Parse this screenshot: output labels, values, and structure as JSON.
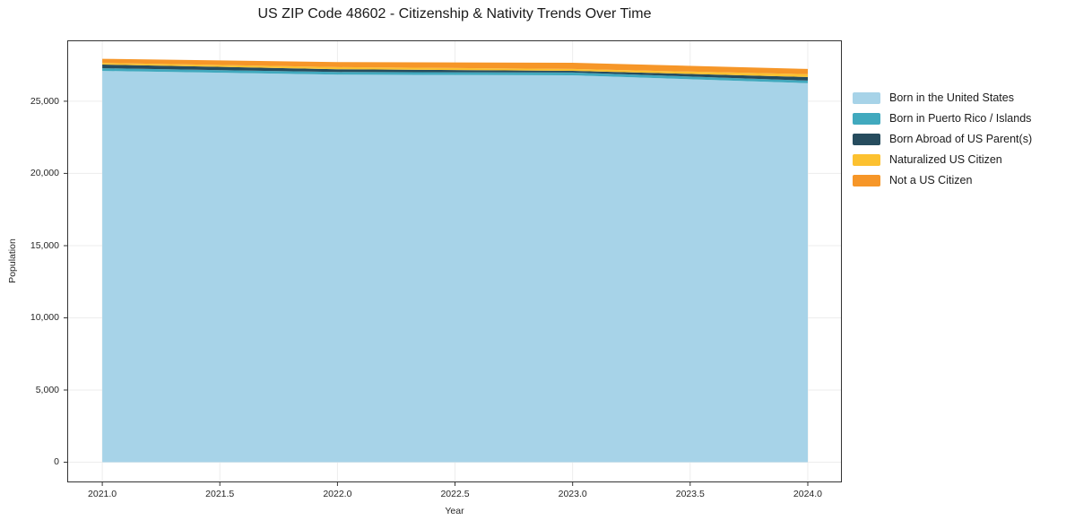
{
  "chart_data": {
    "type": "area",
    "stacked": true,
    "title": "US ZIP Code 48602 - Citizenship & Nativity Trends Over Time",
    "xlabel": "Year",
    "ylabel": "Population",
    "x": [
      2021,
      2022,
      2023,
      2024
    ],
    "series": [
      {
        "name": "Born in the United States",
        "color": "#a7d3e8",
        "values": [
          27100,
          26850,
          26800,
          26250
        ]
      },
      {
        "name": "Born in Puerto Rico / Islands",
        "color": "#41a9be",
        "values": [
          190,
          180,
          190,
          180
        ]
      },
      {
        "name": "Born Abroad of US Parent(s)",
        "color": "#264c5e",
        "values": [
          250,
          190,
          120,
          250
        ]
      },
      {
        "name": "Naturalized US Citizen",
        "color": "#fcc130",
        "values": [
          120,
          140,
          130,
          190
        ]
      },
      {
        "name": "Not a US Citizen",
        "color": "#f69628",
        "values": [
          280,
          360,
          430,
          370
        ]
      }
    ],
    "xticks": {
      "values": [
        2021.0,
        2021.5,
        2022.0,
        2022.5,
        2023.0,
        2023.5,
        2024.0
      ],
      "labels": [
        "2021.0",
        "2021.5",
        "2022.0",
        "2022.5",
        "2023.0",
        "2023.5",
        "2024.0"
      ]
    },
    "yticks": {
      "values": [
        0,
        5000,
        10000,
        15000,
        20000,
        25000
      ],
      "labels": [
        "0",
        "5,000",
        "10,000",
        "15,000",
        "20,000",
        "25,000"
      ]
    },
    "xlim": [
      2020.851,
      2024.145
    ],
    "ylim": [
      -1400,
      29220
    ],
    "grid": true,
    "grid_color": "#ededed",
    "axis_color": "#333333",
    "text_color": "#262626",
    "legend_position": "right"
  }
}
